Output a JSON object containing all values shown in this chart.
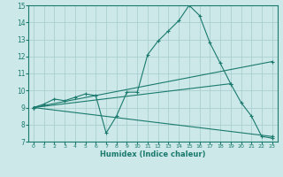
{
  "xlabel": "Humidex (Indice chaleur)",
  "ylabel": "",
  "xlim": [
    -0.5,
    23.5
  ],
  "ylim": [
    7,
    15
  ],
  "xticks": [
    0,
    1,
    2,
    3,
    4,
    5,
    6,
    7,
    8,
    9,
    10,
    11,
    12,
    13,
    14,
    15,
    16,
    17,
    18,
    19,
    20,
    21,
    22,
    23
  ],
  "yticks": [
    7,
    8,
    9,
    10,
    11,
    12,
    13,
    14,
    15
  ],
  "bg_color": "#cce8e8",
  "grid_color": "#aacfcf",
  "line_color": "#1a7a6e",
  "line1": {
    "x": [
      0,
      1,
      2,
      3,
      4,
      5,
      6,
      7,
      8,
      9,
      10,
      11,
      12,
      13,
      14,
      15,
      16,
      17,
      18,
      19,
      20,
      21,
      22,
      23
    ],
    "y": [
      9.0,
      9.2,
      9.5,
      9.4,
      9.6,
      9.8,
      9.7,
      7.5,
      8.5,
      9.9,
      9.9,
      12.1,
      12.9,
      13.5,
      14.1,
      15.0,
      14.4,
      12.8,
      11.6,
      10.4,
      9.3,
      8.5,
      7.3,
      7.2
    ]
  },
  "line2": {
    "x": [
      0,
      23
    ],
    "y": [
      9.0,
      11.7
    ]
  },
  "line3": {
    "x": [
      0,
      23
    ],
    "y": [
      9.0,
      7.3
    ]
  },
  "line4": {
    "x": [
      0,
      19
    ],
    "y": [
      9.0,
      10.4
    ]
  },
  "xtick_labels": [
    "0",
    "1",
    "2",
    "3",
    "4",
    "5",
    "6",
    "7",
    "8",
    "9",
    "10",
    "11",
    "12",
    "13",
    "14",
    "15",
    "16",
    "17",
    "18",
    "19",
    "20",
    "21",
    "22",
    "23"
  ]
}
